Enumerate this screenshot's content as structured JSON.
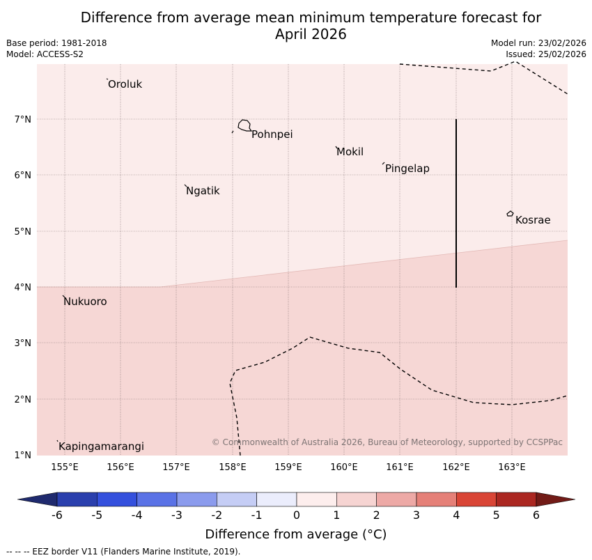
{
  "title_line1": "Difference from average mean minimum temperature forecast for",
  "title_line2": "April 2026",
  "base_period": "Base period: 1981-2018",
  "model": "Model: ACCESS-S2",
  "model_run": "Model run: 23/02/2026",
  "issued": "Issued: 25/02/2026",
  "lat_labels": [
    "7°N",
    "6°N",
    "5°N",
    "4°N",
    "3°N",
    "2°N",
    "1°N"
  ],
  "lon_labels": [
    "155°E",
    "156°E",
    "157°E",
    "158°E",
    "159°E",
    "160°E",
    "161°E",
    "162°E",
    "163°E"
  ],
  "places": {
    "oroluk": "Oroluk",
    "pohnpei": "Pohnpei",
    "mokil": "Mokil",
    "pingelap": "Pingelap",
    "ngatik": "Ngatik",
    "kosrae": "Kosrae",
    "nukuoro": "Nukuoro",
    "kapingamarangi": "Kapingamarangi"
  },
  "copyright": "© Commonwealth of Australia 2026, Bureau of Meteorology, supported by CCSPPac",
  "colorbar": {
    "ticks": [
      "-6",
      "-5",
      "-4",
      "-3",
      "-2",
      "-1",
      "0",
      "1",
      "2",
      "3",
      "4",
      "5",
      "6"
    ],
    "colors": [
      "#1f2a6e",
      "#2a3fad",
      "#3450dd",
      "#5a72e6",
      "#8b9bed",
      "#c5cdf5",
      "#ebedfc",
      "#fdeeed",
      "#f6d4d2",
      "#eda9a6",
      "#e58078",
      "#d94536",
      "#ab2721",
      "#721b17"
    ],
    "label": "Difference from average (°C)"
  },
  "footer": "--  --  -- EEZ border V11 (Flanders Marine Institute, 2019)."
}
